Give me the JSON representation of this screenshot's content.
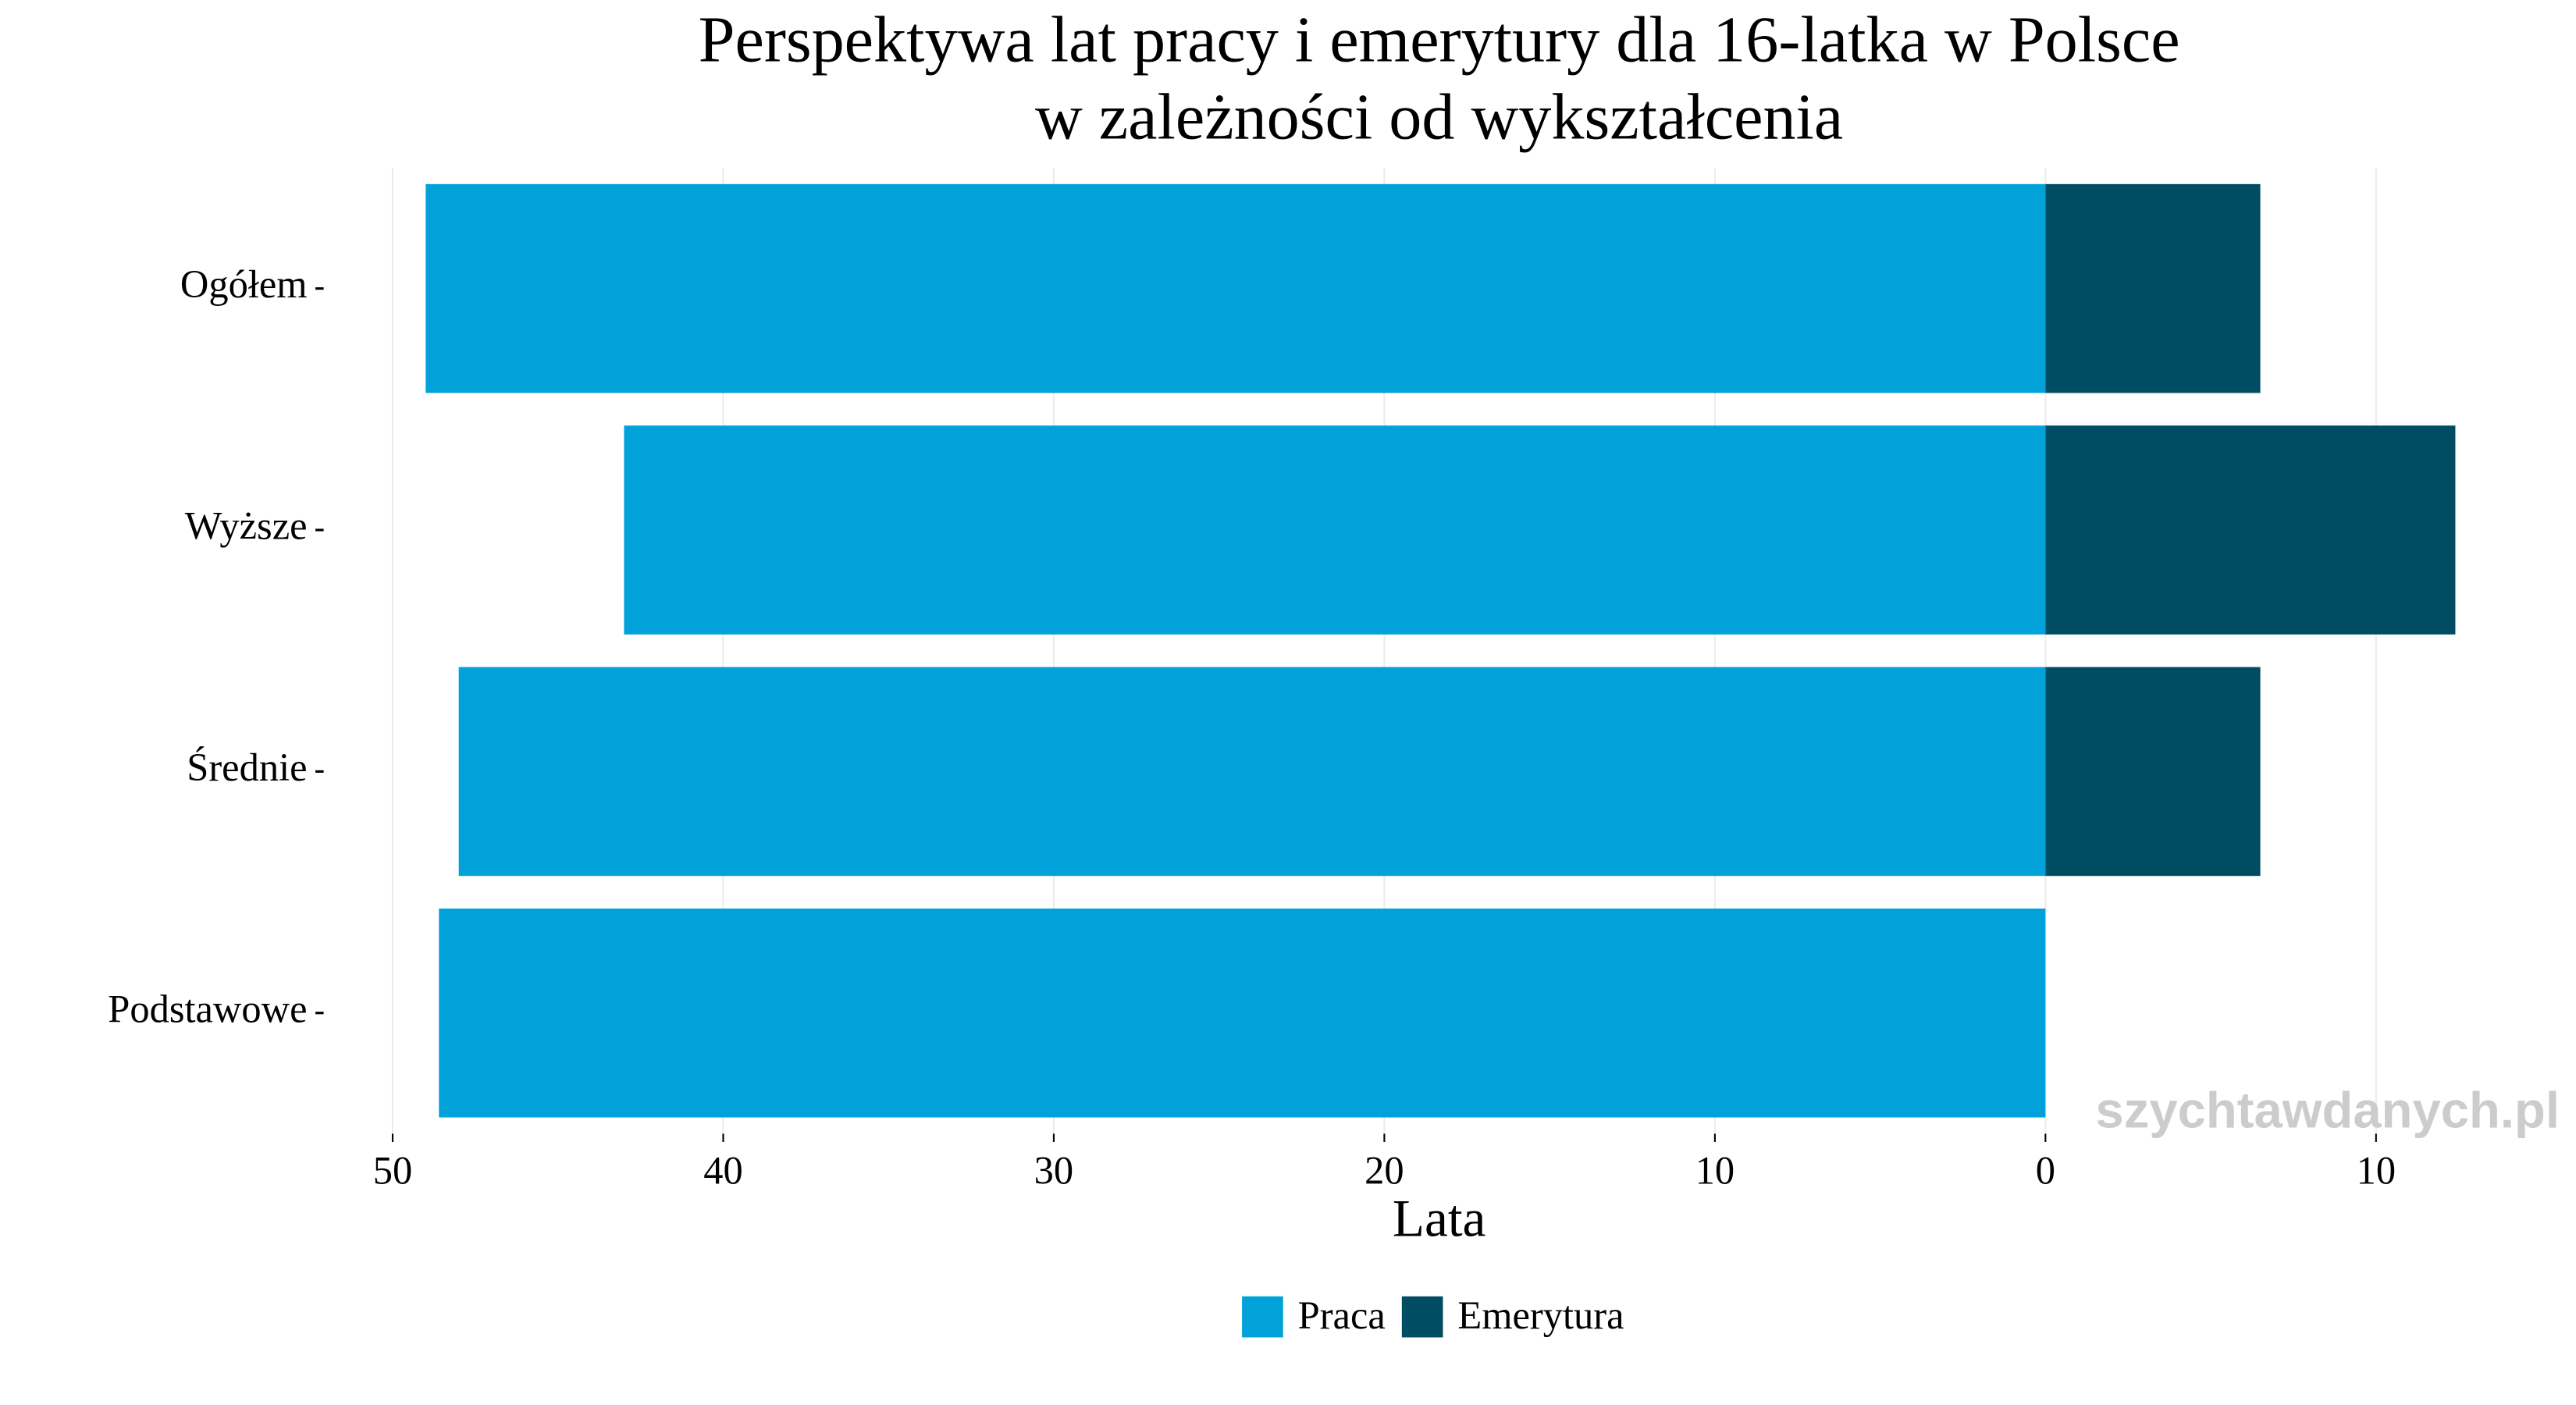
{
  "chart_data": {
    "type": "diverging-bar",
    "title": [
      "Perspektywa lat pracy i emerytury dla 16-latka w Polsce",
      "w zależności od wykształcenia"
    ],
    "xlabel": "Lata",
    "annotation": "szychtawdanych.pl",
    "categories": [
      "Ogółem",
      "Wyższe",
      "Średnie",
      "Podstawowe"
    ],
    "series": [
      {
        "name": "Praca",
        "color": "#00a2d9",
        "values": [
          -49.0,
          -43.0,
          -48.0,
          -48.6
        ]
      },
      {
        "name": "Emerytura",
        "color": "#004c63",
        "values": [
          6.5,
          12.4,
          6.5,
          0
        ]
      }
    ],
    "xlim": [
      -50,
      12.7
    ],
    "xticks": [
      {
        "value": -50,
        "label": "50"
      },
      {
        "value": -40,
        "label": "40"
      },
      {
        "value": -30,
        "label": "30"
      },
      {
        "value": -20,
        "label": "20"
      },
      {
        "value": -10,
        "label": "10"
      },
      0,
      10
    ],
    "grid": true,
    "legend": "bottom"
  }
}
